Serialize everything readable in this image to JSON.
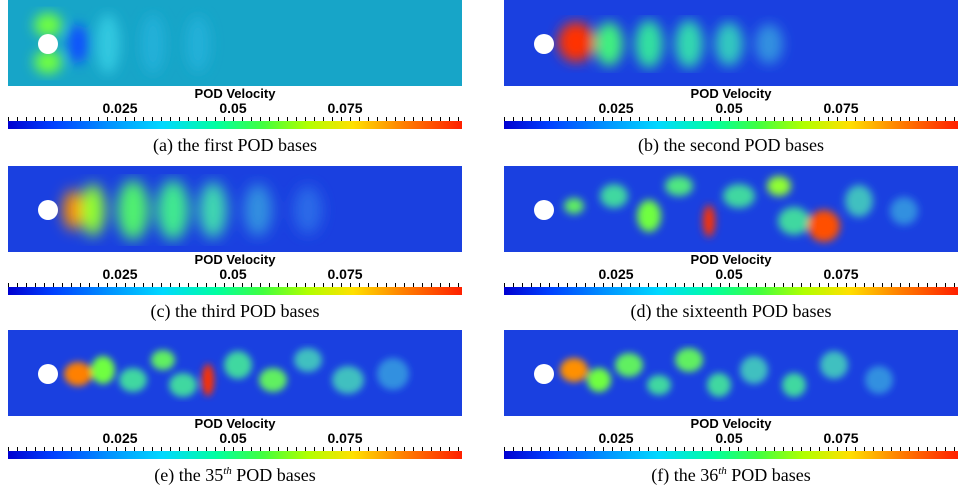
{
  "colorbar": {
    "title": "POD Velocity",
    "ticks": [
      "0.025",
      "0.05",
      "0.075"
    ],
    "tick_values": [
      0.025,
      0.05,
      0.075
    ],
    "range": [
      0,
      0.1
    ],
    "colormap": [
      "#0000d0",
      "#0090ff",
      "#00ffa0",
      "#b0ff00",
      "#ffe000",
      "#ff2000"
    ]
  },
  "panels": [
    {
      "caption": "(a) the first POD bases",
      "ordinal_sup": ""
    },
    {
      "caption": "(b) the second POD bases",
      "ordinal_sup": ""
    },
    {
      "caption": "(c) the third POD bases",
      "ordinal_sup": ""
    },
    {
      "caption": "(d) the sixteenth POD bases",
      "ordinal_sup": ""
    },
    {
      "caption_prefix": "(e) the 35",
      "ordinal_sup": "th",
      "caption_suffix": " POD bases"
    },
    {
      "caption_prefix": "(f) the 36",
      "ordinal_sup": "th",
      "caption_suffix": " POD bases"
    }
  ]
}
